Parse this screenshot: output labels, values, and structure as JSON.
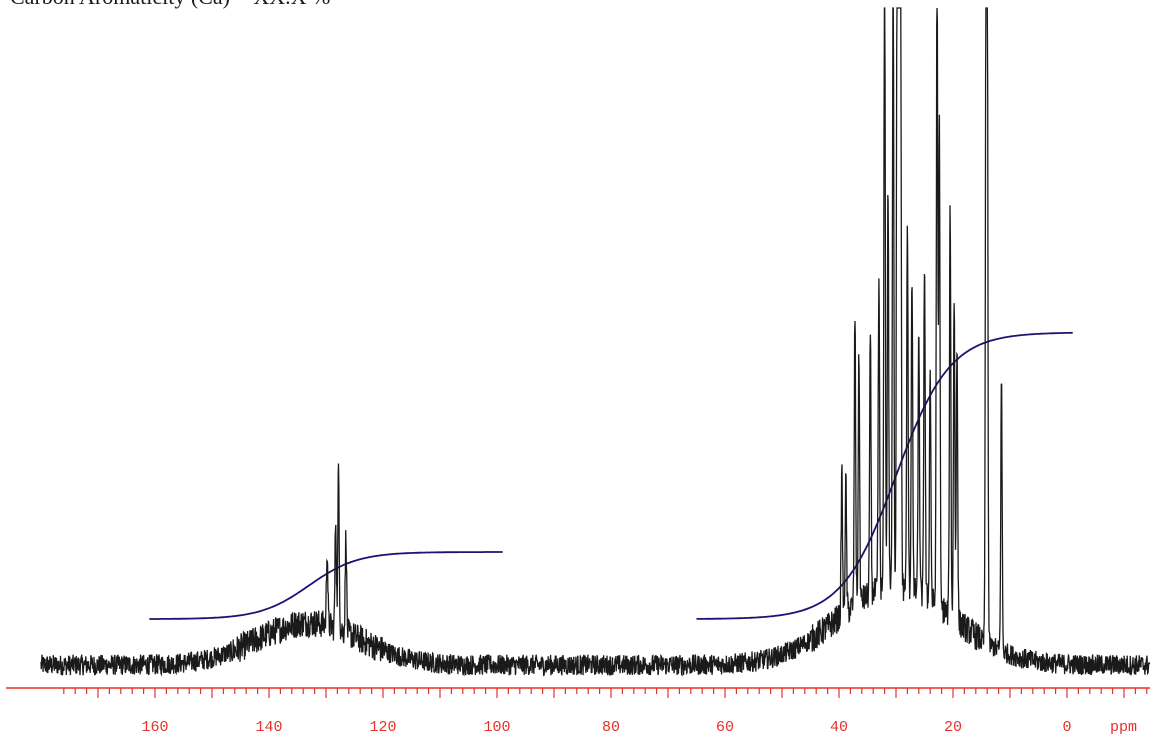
{
  "chart_data": {
    "type": "line",
    "title": "Carbon Aromaticity (Ca) = XX.X %",
    "xlabel": "ppm",
    "x_reversed": true,
    "xlim": [
      180,
      -15
    ],
    "x_ticks_major": [
      160,
      140,
      120,
      100,
      80,
      60,
      40,
      20,
      0
    ],
    "x_tick_minor_step": 2,
    "grid": false,
    "legend": "none",
    "colors": {
      "spectrum": "#1a1a1a",
      "integral": "#1a1473",
      "axis": "#e8302a",
      "tick_labels": "#e8302a",
      "title": "#1a1a1a"
    },
    "series": [
      {
        "id": "spectrum",
        "baseline": 0,
        "noise_amplitude": 1.0,
        "broad_humps": [
          {
            "center": 133,
            "width": 9,
            "height": 6.5
          },
          {
            "center": 30,
            "width": 10,
            "height": 12
          }
        ],
        "peaks": [
          [
            39.5,
            22
          ],
          [
            38.8,
            20
          ],
          [
            37.2,
            45
          ],
          [
            36.5,
            38
          ],
          [
            34.5,
            40
          ],
          [
            33.0,
            48
          ],
          [
            32.0,
            100
          ],
          [
            31.4,
            62
          ],
          [
            30.5,
            100
          ],
          [
            29.8,
            100
          ],
          [
            29.5,
            100
          ],
          [
            29.2,
            100
          ],
          [
            28.0,
            55
          ],
          [
            27.2,
            49
          ],
          [
            26.0,
            40
          ],
          [
            25.0,
            52
          ],
          [
            24.0,
            36
          ],
          [
            22.8,
            100
          ],
          [
            22.4,
            75
          ],
          [
            20.5,
            63
          ],
          [
            19.8,
            50
          ],
          [
            19.3,
            43
          ],
          [
            14.2,
            100
          ],
          [
            14.0,
            100
          ],
          [
            11.5,
            42
          ],
          [
            127.8,
            25
          ],
          [
            128.3,
            17
          ],
          [
            126.5,
            15
          ],
          [
            129.8,
            12
          ]
        ]
      },
      {
        "id": "integral-aromatic",
        "x_start": 161,
        "x_end": 99,
        "y_start": 19,
        "y_end": 30,
        "center": 133,
        "width": 9
      },
      {
        "id": "integral-aliphatic",
        "x_start": 65,
        "x_end": -1,
        "y_start": 19,
        "y_end": 66,
        "center": 30,
        "width": 10
      }
    ]
  }
}
